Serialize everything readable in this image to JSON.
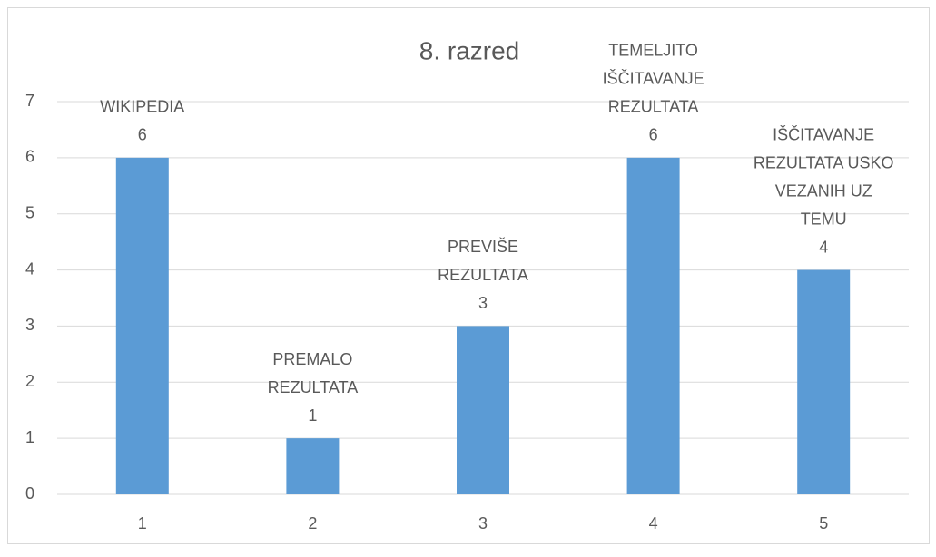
{
  "chart_data": {
    "type": "bar",
    "title": "8. razred",
    "categories": [
      "1",
      "2",
      "3",
      "4",
      "5"
    ],
    "values": [
      6,
      1,
      3,
      6,
      4
    ],
    "annotations": [
      [
        "WIKIPEDIA"
      ],
      [
        "PREMALO",
        "REZULTATA"
      ],
      [
        "PREVIŠE",
        "REZULTATA"
      ],
      [
        "TEMELJITO",
        "IŠČITAVANJE",
        "REZULTATA"
      ],
      [
        "IŠČITAVANJE",
        "REZULTATA USKO",
        "VEZANIH UZ",
        "TEMU"
      ]
    ],
    "color": "#5b9bd5",
    "ylim": [
      0,
      7
    ],
    "yticks": [
      0,
      1,
      2,
      3,
      4,
      5,
      6,
      7
    ],
    "grid": true
  }
}
